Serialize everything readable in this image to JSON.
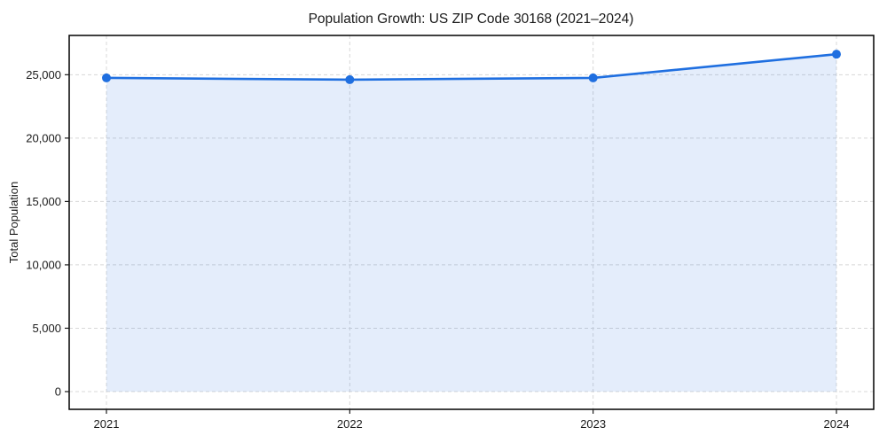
{
  "chart_data": {
    "type": "area",
    "title": "Population Growth: US ZIP Code 30168 (2021–2024)",
    "xlabel": "",
    "ylabel": "Total Population",
    "categories": [
      "2021",
      "2022",
      "2023",
      "2024"
    ],
    "series": [
      {
        "name": "Total Population",
        "values": [
          24750,
          24610,
          24750,
          26620
        ]
      }
    ],
    "y_ticks": [
      0,
      5000,
      10000,
      15000,
      20000,
      25000
    ],
    "y_tick_labels": [
      "0",
      "5,000",
      "10,000",
      "15,000",
      "20,000",
      "25,000"
    ],
    "ylim": [
      -1400,
      28100
    ],
    "grid": "dashed-both-axes",
    "legend": "none",
    "marker": "circle",
    "colors": {
      "line": "#1f6fe0",
      "marker": "#1f6fe0",
      "fill": "rgba(31,111,224,0.12)",
      "grid": "#d8d8d8",
      "spine": "#000000",
      "tick": "#1a1a1a",
      "text": "#1a1a1a",
      "plot_background": "#ffffff",
      "figure_background": "#ffffff"
    }
  }
}
